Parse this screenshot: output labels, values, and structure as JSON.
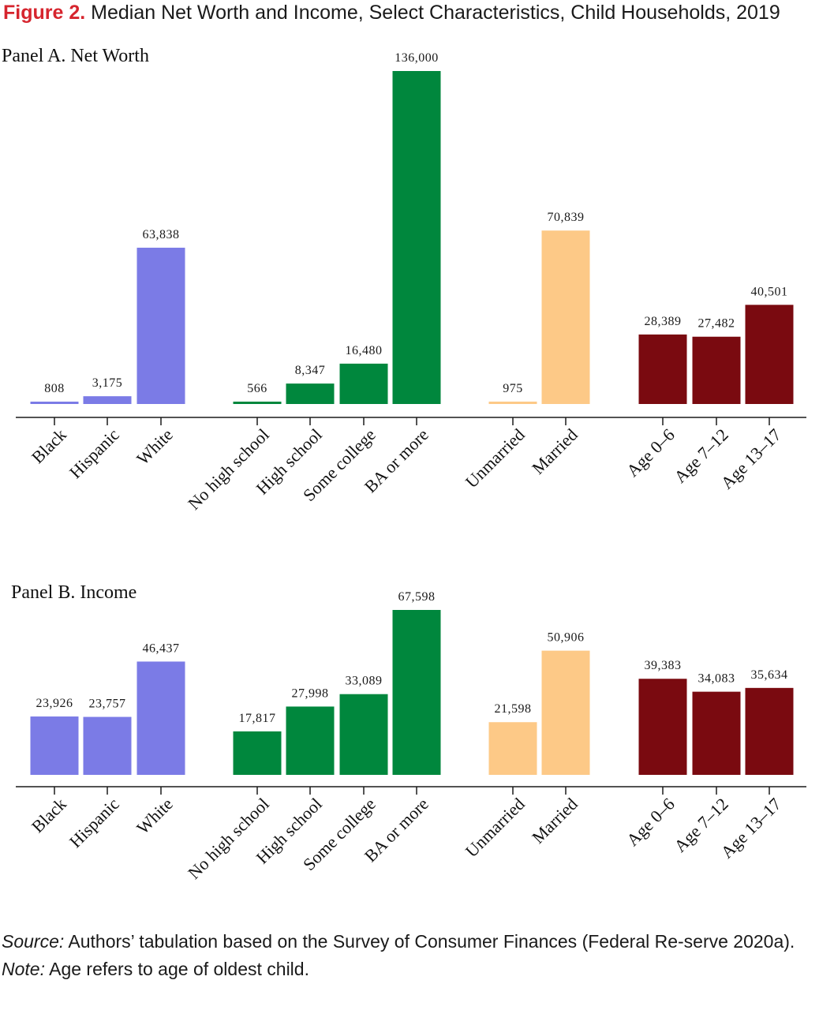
{
  "figure": {
    "label": "Figure 2.",
    "title": "Median Net Worth and Income, Select Characteristics, Child Households, 2019"
  },
  "colors": {
    "race": "#7b7be6",
    "education": "#00873d",
    "marital": "#fdc987",
    "age": "#7a0a10",
    "figure_label": "#d6252e"
  },
  "chart_data": [
    {
      "type": "bar",
      "title": "Panel A. Net Worth",
      "categories": [
        "Black",
        "Hispanic",
        "White",
        "No high school",
        "High school",
        "Some college",
        "BA or more",
        "Unmarried",
        "Married",
        "Age 0–6",
        "Age 7–12",
        "Age 13–17"
      ],
      "groups": [
        "race",
        "race",
        "race",
        "education",
        "education",
        "education",
        "education",
        "marital",
        "marital",
        "age",
        "age",
        "age"
      ],
      "values": [
        808,
        3175,
        63838,
        566,
        8347,
        16480,
        136000,
        975,
        70839,
        28389,
        27482,
        40501
      ],
      "value_labels": [
        "808",
        "3,175",
        "63,838",
        "566",
        "8,347",
        "16,480",
        "136,000",
        "975",
        "70,839",
        "28,389",
        "27,482",
        "40,501"
      ],
      "ylim": [
        0,
        136000
      ],
      "grid": false
    },
    {
      "type": "bar",
      "title": "Panel B. Income",
      "categories": [
        "Black",
        "Hispanic",
        "White",
        "No high school",
        "High school",
        "Some college",
        "BA or more",
        "Unmarried",
        "Married",
        "Age 0–6",
        "Age 7–12",
        "Age 13–17"
      ],
      "groups": [
        "race",
        "race",
        "race",
        "education",
        "education",
        "education",
        "education",
        "marital",
        "marital",
        "age",
        "age",
        "age"
      ],
      "values": [
        23926,
        23757,
        46437,
        17817,
        27998,
        33089,
        67598,
        21598,
        50906,
        39383,
        34083,
        35634
      ],
      "value_labels": [
        "23,926",
        "23,757",
        "46,437",
        "17,817",
        "27,998",
        "33,089",
        "67,598",
        "21,598",
        "50,906",
        "39,383",
        "34,083",
        "35,634"
      ],
      "ylim": [
        0,
        67598
      ],
      "grid": false
    }
  ],
  "footer": {
    "source_label": "Source:",
    "source_text": " Authors’ tabulation based on the Survey of Consumer Finances (Federal Re-serve 2020a).",
    "note_label": "Note:",
    "note_text": " Age refers to age of oldest child."
  }
}
